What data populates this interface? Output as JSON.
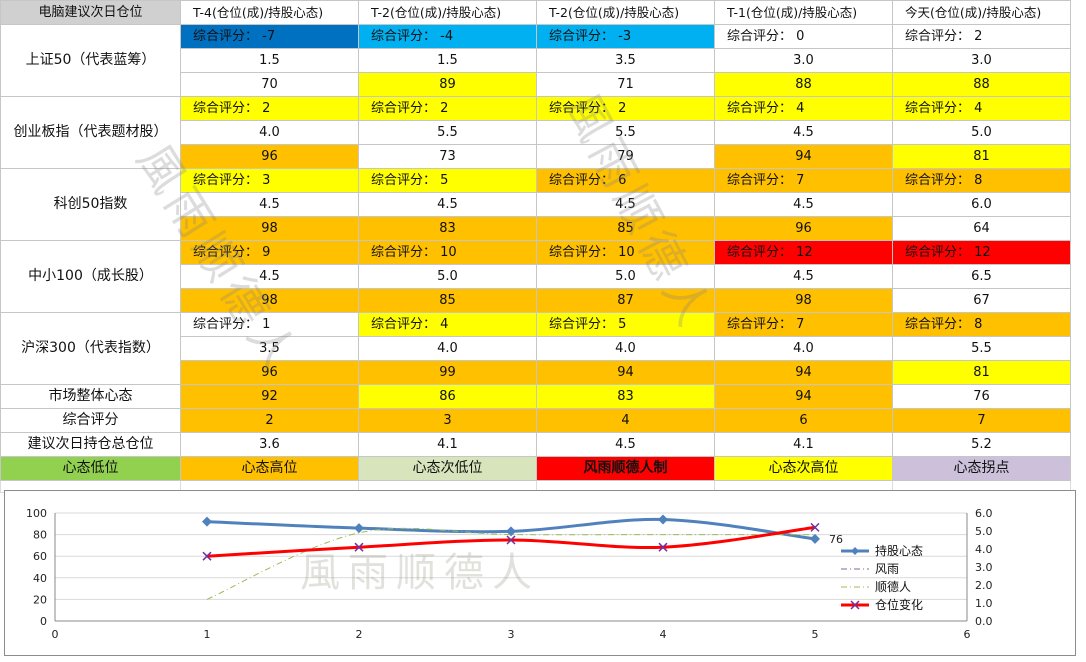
{
  "table": {
    "corner": "电脑建议次日仓位",
    "columns": [
      "T-4(仓位(成)/持股心态)",
      "T-2(仓位(成)/持股心态)",
      "T-2(仓位(成)/持股心态)",
      "T-1(仓位(成)/持股心态)",
      "今天(仓位(成)/持股心态)"
    ],
    "rows": [
      {
        "label": "上证50（代表蓝筹）",
        "scores": [
          "综合评分： -7",
          "综合评分： -4",
          "综合评分： -3",
          "综合评分： 0",
          "综合评分： 2"
        ],
        "score_colors": [
          "blue",
          "lblue",
          "lblue",
          "white",
          "white"
        ],
        "positions": [
          "1.5",
          "1.5",
          "3.5",
          "3.0",
          "3.0"
        ],
        "moods": [
          "70",
          "89",
          "71",
          "88",
          "88"
        ],
        "mood_colors": [
          "white",
          "yellow",
          "white",
          "yellow",
          "yellow"
        ]
      },
      {
        "label": "创业板指（代表题材股）",
        "scores": [
          "综合评分： 2",
          "综合评分： 2",
          "综合评分： 2",
          "综合评分： 4",
          "综合评分： 4"
        ],
        "score_colors": [
          "yellow",
          "yellow",
          "yellow",
          "yellow",
          "yellow"
        ],
        "positions": [
          "4.0",
          "5.5",
          "5.5",
          "4.5",
          "5.0"
        ],
        "moods": [
          "96",
          "73",
          "79",
          "94",
          "81"
        ],
        "mood_colors": [
          "orange",
          "white",
          "white",
          "orange",
          "yellow"
        ]
      },
      {
        "label": "科创50指数",
        "scores": [
          "综合评分： 3",
          "综合评分： 5",
          "综合评分： 6",
          "综合评分： 7",
          "综合评分： 8"
        ],
        "score_colors": [
          "yellow",
          "yellow",
          "orange",
          "orange",
          "orange"
        ],
        "positions": [
          "4.5",
          "4.5",
          "4.5",
          "4.5",
          "6.0"
        ],
        "moods": [
          "98",
          "83",
          "85",
          "96",
          "64"
        ],
        "mood_colors": [
          "orange",
          "orange",
          "orange",
          "orange",
          "white"
        ]
      },
      {
        "label": "中小100（成长股）",
        "scores": [
          "综合评分： 9",
          "综合评分： 10",
          "综合评分： 10",
          "综合评分： 12",
          "综合评分： 12"
        ],
        "score_colors": [
          "orange",
          "orange",
          "orange",
          "red",
          "red"
        ],
        "positions": [
          "4.5",
          "5.0",
          "5.0",
          "4.5",
          "6.5"
        ],
        "moods": [
          "98",
          "85",
          "87",
          "98",
          "67"
        ],
        "mood_colors": [
          "orange",
          "orange",
          "orange",
          "orange",
          "white"
        ]
      },
      {
        "label": "沪深300（代表指数）",
        "scores": [
          "综合评分： 1",
          "综合评分： 4",
          "综合评分： 5",
          "综合评分： 7",
          "综合评分： 8"
        ],
        "score_colors": [
          "white",
          "yellow",
          "yellow",
          "orange",
          "orange"
        ],
        "positions": [
          "3.5",
          "4.0",
          "4.0",
          "4.0",
          "5.5"
        ],
        "moods": [
          "96",
          "99",
          "94",
          "94",
          "81"
        ],
        "mood_colors": [
          "orange",
          "orange",
          "orange",
          "orange",
          "yellow"
        ]
      }
    ],
    "market": {
      "label": "市场整体心态",
      "values": [
        "92",
        "86",
        "83",
        "94",
        "76"
      ],
      "colors": [
        "orange",
        "yellow",
        "yellow",
        "orange",
        "white"
      ]
    },
    "total_score": {
      "label": "综合评分",
      "values": [
        "2",
        "3",
        "4",
        "6",
        "7"
      ],
      "colors": [
        "orange",
        "orange",
        "orange",
        "orange",
        "orange"
      ]
    },
    "next_day": {
      "label": "建议次日持仓总仓位",
      "values": [
        "3.6",
        "4.1",
        "4.5",
        "4.1",
        "5.2"
      ]
    },
    "legend": [
      {
        "text": "心态低位",
        "color": "green"
      },
      {
        "text": "心态高位",
        "color": "orange"
      },
      {
        "text": "心态次低位",
        "color": "sage"
      },
      {
        "text": "风雨顺德人制",
        "color": "red",
        "bold": true
      },
      {
        "text": "心态次高位",
        "color": "yellow"
      },
      {
        "text": "心态拐点",
        "color": "lav"
      }
    ]
  },
  "watermark": {
    "text1": "風雨顺德人",
    "text2": "風雨顺德人",
    "text3": "風雨顺德人"
  },
  "colors": {
    "white": "#ffffff",
    "yellow": "#ffff00",
    "orange": "#ffc000",
    "blue": "#0070c0",
    "lblue": "#00b0f0",
    "red": "#ff0000",
    "green": "#92d050",
    "sage": "#d8e4bc",
    "lav": "#ccc0da"
  },
  "chart_data": {
    "type": "line",
    "x": [
      1,
      2,
      3,
      4,
      5
    ],
    "xlim": [
      0,
      6
    ],
    "x_ticks": [
      "0",
      "1",
      "2",
      "3",
      "4",
      "5",
      "6"
    ],
    "ylim": [
      0,
      100
    ],
    "y_ticks": [
      "0",
      "20",
      "40",
      "60",
      "80",
      "100"
    ],
    "y2lim": [
      0,
      6
    ],
    "y2_ticks": [
      "0.0",
      "1.0",
      "2.0",
      "3.0",
      "4.0",
      "5.0",
      "6.0"
    ],
    "series": [
      {
        "name": "持股心态",
        "axis": "left",
        "values": [
          92,
          86,
          83,
          94,
          76
        ],
        "color": "#4f81bd",
        "style": "solid-diamond",
        "smooth": true
      },
      {
        "name": "风雨",
        "axis": "right",
        "values": [
          4.5,
          4.5,
          4.5,
          4.5,
          4.5
        ],
        "color": "#8064a2",
        "style": "dashdot",
        "hidden": true
      },
      {
        "name": "顺德人",
        "axis": "right",
        "values": [
          1.2,
          4.9,
          4.8,
          4.8,
          4.8
        ],
        "color": "#9bbb59",
        "style": "dashdot",
        "smooth": true,
        "start_x": 1
      },
      {
        "name": "仓位变化",
        "axis": "right",
        "values": [
          3.6,
          4.1,
          4.5,
          4.1,
          5.2
        ],
        "color": "#ff0000",
        "style": "solid-x",
        "smooth": true
      }
    ],
    "data_labels": [
      {
        "series": "持股心态",
        "index": 4,
        "text": "76"
      }
    ],
    "legend_position": "right"
  }
}
